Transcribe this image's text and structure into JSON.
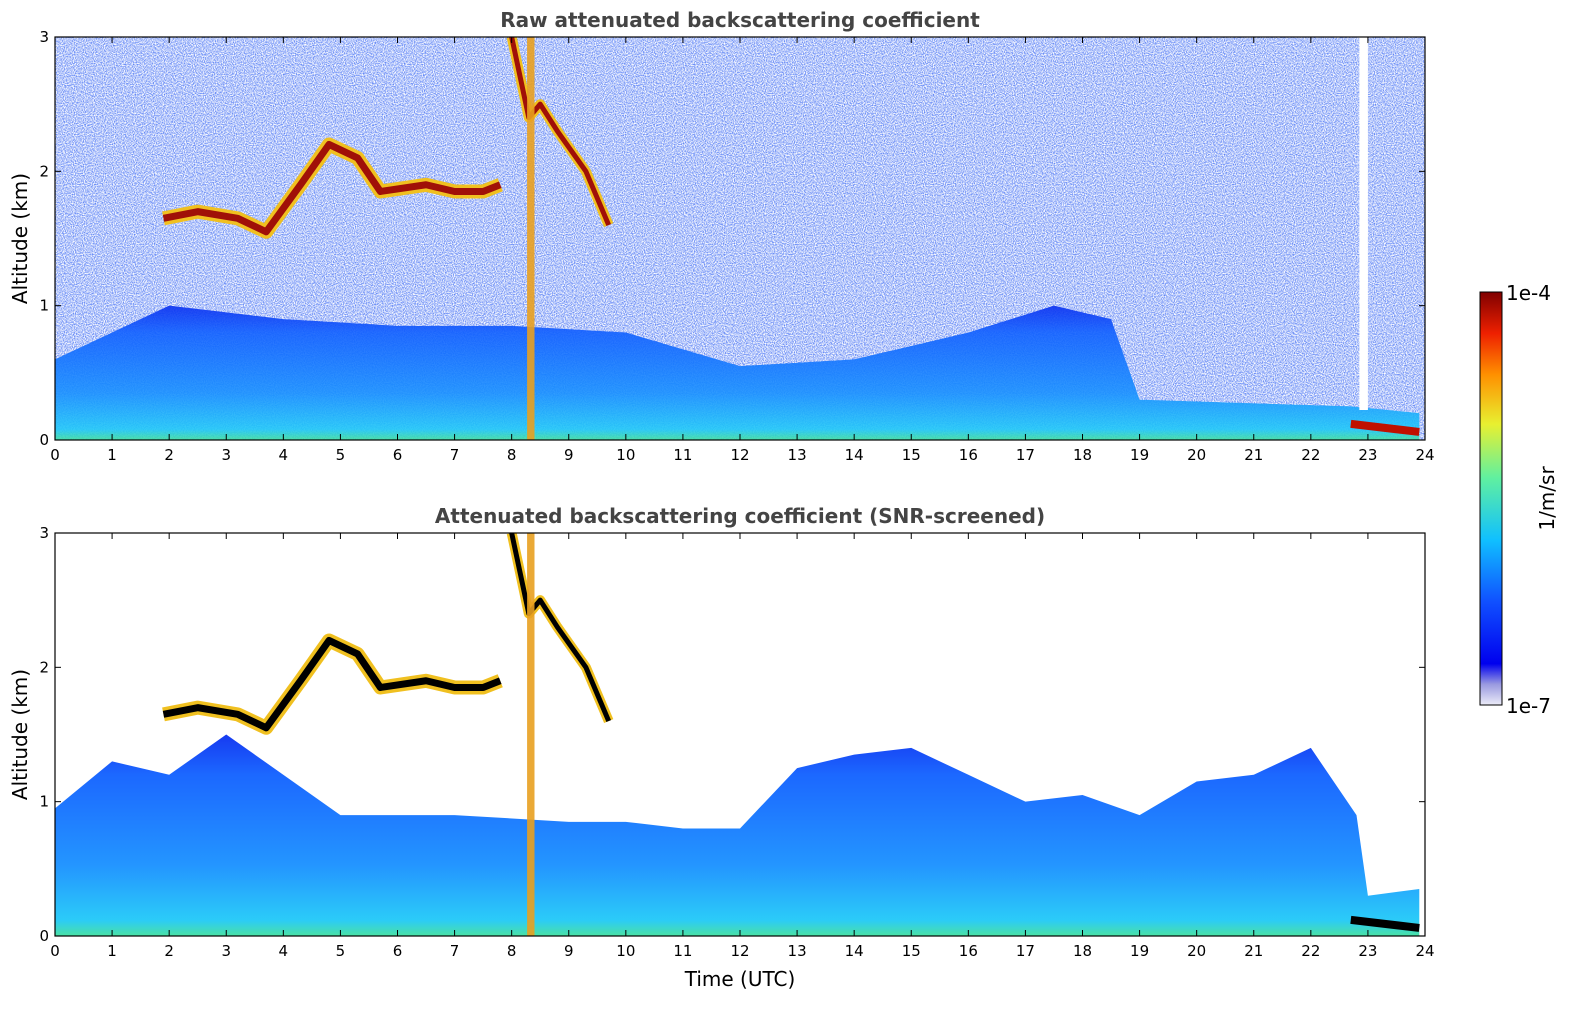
{
  "chart_data": [
    {
      "type": "heatmap",
      "title": "Raw attenuated backscattering coefficient",
      "xlabel": "",
      "ylabel": "Altitude (km)",
      "xlim": [
        0,
        24
      ],
      "ylim": [
        0,
        3
      ],
      "xticks": [
        "0",
        "1",
        "2",
        "3",
        "4",
        "5",
        "6",
        "7",
        "8",
        "9",
        "10",
        "11",
        "12",
        "13",
        "14",
        "15",
        "16",
        "17",
        "18",
        "19",
        "20",
        "21",
        "22",
        "23",
        "24"
      ],
      "yticks": [
        "0",
        "1",
        "2",
        "3"
      ],
      "features": {
        "noisy_background_above_km": 1.0,
        "cloud_layer": [
          [
            1.9,
            1.65
          ],
          [
            2.5,
            1.7
          ],
          [
            3.2,
            1.65
          ],
          [
            3.7,
            1.55
          ],
          [
            4.3,
            1.9
          ],
          [
            4.8,
            2.2
          ],
          [
            5.3,
            2.1
          ],
          [
            5.7,
            1.85
          ],
          [
            6.5,
            1.9
          ],
          [
            7.0,
            1.85
          ],
          [
            7.5,
            1.85
          ],
          [
            7.8,
            1.9
          ]
        ],
        "falling_streak": [
          [
            8.0,
            3.0
          ],
          [
            8.3,
            2.4
          ],
          [
            8.5,
            2.5
          ],
          [
            8.8,
            2.3
          ],
          [
            9.3,
            2.0
          ],
          [
            9.7,
            1.6
          ]
        ],
        "boundary_layer_top": [
          [
            0,
            0.6
          ],
          [
            2,
            1.0
          ],
          [
            4,
            0.9
          ],
          [
            6,
            0.85
          ],
          [
            8,
            0.85
          ],
          [
            10,
            0.8
          ],
          [
            12,
            0.55
          ],
          [
            14,
            0.6
          ],
          [
            16,
            0.8
          ],
          [
            17.5,
            1.0
          ],
          [
            18.5,
            0.9
          ],
          [
            19,
            0.3
          ],
          [
            22.7,
            0.25
          ],
          [
            23.9,
            0.2
          ]
        ],
        "melting_layer_or_fog": [
          [
            22.7,
            0.12
          ],
          [
            23.9,
            0.06
          ]
        ]
      }
    },
    {
      "type": "heatmap",
      "title": "Attenuated backscattering coefficient (SNR-screened)",
      "xlabel": "Time (UTC)",
      "ylabel": "Altitude (km)",
      "xlim": [
        0,
        24
      ],
      "ylim": [
        0,
        3
      ],
      "xticks": [
        "0",
        "1",
        "2",
        "3",
        "4",
        "5",
        "6",
        "7",
        "8",
        "9",
        "10",
        "11",
        "12",
        "13",
        "14",
        "15",
        "16",
        "17",
        "18",
        "19",
        "20",
        "21",
        "22",
        "23",
        "24"
      ],
      "yticks": [
        "0",
        "1",
        "2",
        "3"
      ],
      "features": {
        "screened_region_top": [
          [
            0,
            0.95
          ],
          [
            1,
            1.3
          ],
          [
            2,
            1.2
          ],
          [
            3,
            1.5
          ],
          [
            5,
            0.9
          ],
          [
            7,
            0.9
          ],
          [
            9,
            0.85
          ],
          [
            10,
            0.85
          ],
          [
            11,
            0.8
          ],
          [
            12,
            0.8
          ],
          [
            13,
            1.25
          ],
          [
            14,
            1.35
          ],
          [
            15,
            1.4
          ],
          [
            16,
            1.2
          ],
          [
            17,
            1.0
          ],
          [
            18,
            1.05
          ],
          [
            19,
            0.9
          ],
          [
            20,
            1.15
          ],
          [
            21,
            1.2
          ],
          [
            22,
            1.4
          ],
          [
            22.8,
            0.9
          ],
          [
            23.0,
            0.3
          ],
          [
            23.9,
            0.35
          ]
        ]
      }
    }
  ],
  "colorbar": {
    "max_label": "1e-4",
    "min_label": "1e-7",
    "unit": "1/m/sr",
    "colormap": "jet"
  },
  "colors": {
    "white_lowest": "#e6e6f5",
    "dark_blue": "#0000e6",
    "blue": "#1450ff",
    "cyan": "#14c8ff",
    "green": "#64f08c",
    "yellow": "#f0e628",
    "orange": "#ff8c00",
    "red": "#e61400",
    "dark_red": "#800000",
    "black": "#000000"
  }
}
